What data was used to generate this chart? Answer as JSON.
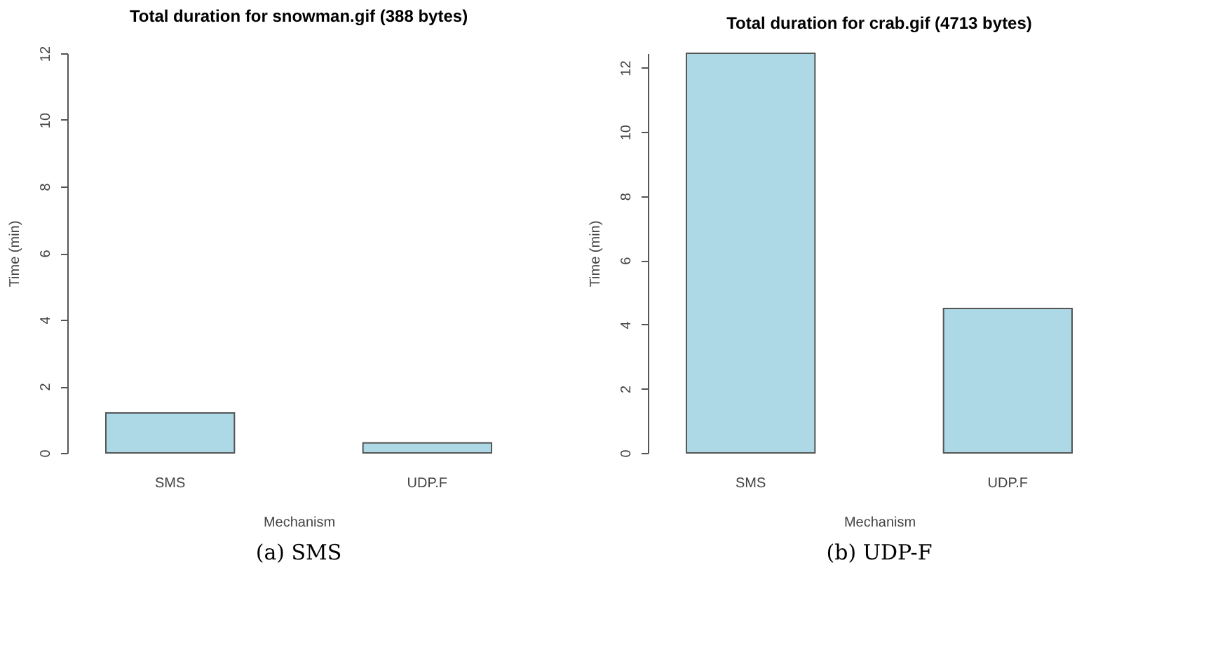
{
  "chart_data": [
    {
      "type": "bar",
      "title": "Total duration for snowman.gif (388 bytes)",
      "xlabel": "Mechanism",
      "ylabel": "Time (min)",
      "categories": [
        "SMS",
        "UDP.F"
      ],
      "values": [
        1.2,
        0.3
      ],
      "color": "#add8e6",
      "ylim": [
        0,
        12
      ],
      "yticks": [
        0,
        2,
        4,
        6,
        8,
        10,
        12
      ],
      "grid": false,
      "annotations": [
        "(a) SMS"
      ]
    },
    {
      "type": "bar",
      "title": "Total duration for crab.gif (4713 bytes)",
      "xlabel": "Mechanism",
      "ylabel": "Time (min)",
      "categories": [
        "SMS",
        "UDP.F"
      ],
      "values": [
        12.45,
        4.5
      ],
      "color": "#add8e6",
      "ylim": [
        0,
        12.45
      ],
      "yticks": [
        0,
        2,
        4,
        6,
        8,
        10,
        12
      ],
      "grid": false,
      "annotations": [
        "(b) UDP-F"
      ]
    }
  ]
}
